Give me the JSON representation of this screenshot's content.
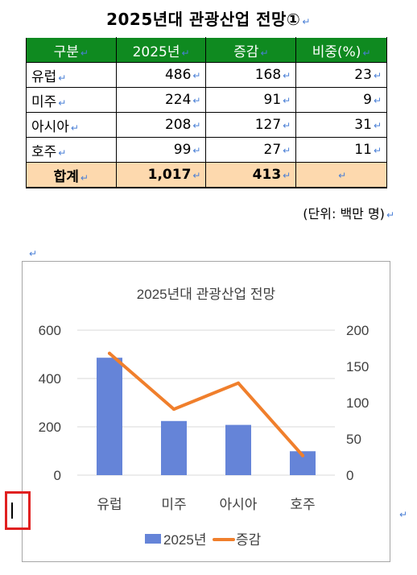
{
  "document": {
    "title": "2025년대 관광산업 전망①",
    "para_mark": "↵",
    "unit_note": "(단위: 백만 명)"
  },
  "table": {
    "headers": [
      "구분",
      "2025년",
      "증감",
      "비중(%)"
    ],
    "rows": [
      {
        "label": "유럽",
        "v2025": "486",
        "change": "168",
        "share": "23"
      },
      {
        "label": "미주",
        "v2025": "224",
        "change": "91",
        "share": "9"
      },
      {
        "label": "아시아",
        "v2025": "208",
        "change": "127",
        "share": "31"
      },
      {
        "label": "호주",
        "v2025": "99",
        "change": "27",
        "share": "11"
      }
    ],
    "total": {
      "label": "합계",
      "v2025": "1,017",
      "change": "413",
      "share": ""
    },
    "colors": {
      "header_bg": "#0f8a20",
      "header_text": "#ffffff",
      "total_bg": "#fdd9ae"
    }
  },
  "chart_data": {
    "type": "bar",
    "title": "2025년대 관광산업 전망",
    "categories": [
      "유럽",
      "미주",
      "아시아",
      "호주"
    ],
    "series": [
      {
        "name": "2025년",
        "type": "bar",
        "axis": "left",
        "color": "#6584d8",
        "values": [
          486,
          224,
          208,
          99
        ]
      },
      {
        "name": "증감",
        "type": "line",
        "axis": "right",
        "color": "#f07f2c",
        "values": [
          168,
          91,
          127,
          27
        ]
      }
    ],
    "y_left": {
      "min": 0,
      "max": 600,
      "ticks": [
        0,
        200,
        400,
        600
      ]
    },
    "y_right": {
      "min": 0,
      "max": 200,
      "ticks": [
        0,
        50,
        100,
        150,
        200
      ]
    },
    "grid": true,
    "legend_position": "bottom"
  }
}
